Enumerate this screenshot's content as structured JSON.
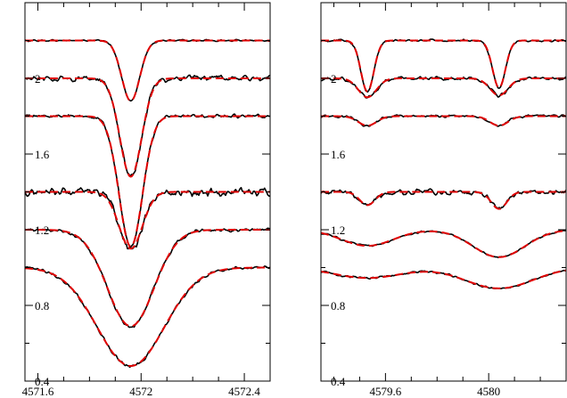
{
  "chart_data": [
    {
      "type": "line",
      "panel": "left",
      "xlim": [
        4571.55,
        4572.5
      ],
      "ylim": [
        0.4,
        2.4
      ],
      "xticks": [
        4571.6,
        4572.0,
        4572.4
      ],
      "xtick_labels": [
        "4571.6",
        "4572",
        "4572.4"
      ],
      "xminor": [
        4571.7,
        4571.8,
        4571.9,
        4572.1,
        4572.2,
        4572.3,
        4572.5
      ],
      "yticks": [
        0.4,
        0.8,
        1.2,
        1.6,
        2.0
      ],
      "ytick_labels": [
        "0.4",
        "0.8",
        "1.2",
        "1.6",
        "2"
      ],
      "yminor": [
        0.6,
        1.0,
        1.4,
        1.8,
        2.2
      ],
      "line_styles": {
        "observed": "#000000 solid",
        "model": "#e00000 dashed"
      },
      "spectra": [
        {
          "continuum": 2.2,
          "noise": 0.004,
          "lines": [
            {
              "center": 4571.96,
              "depth": 0.32,
              "width": 0.035
            }
          ]
        },
        {
          "continuum": 2.0,
          "noise": 0.012,
          "lines": [
            {
              "center": 4571.96,
              "depth": 0.52,
              "width": 0.042
            }
          ]
        },
        {
          "continuum": 1.8,
          "noise": 0.008,
          "lines": [
            {
              "center": 4571.96,
              "depth": 0.69,
              "width": 0.045
            }
          ]
        },
        {
          "continuum": 1.4,
          "noise": 0.018,
          "lines": [
            {
              "center": 4571.96,
              "depth": 0.3,
              "width": 0.045
            }
          ]
        },
        {
          "continuum": 1.2,
          "noise": 0.008,
          "lines": [
            {
              "center": 4571.96,
              "depth": 0.51,
              "width": 0.09
            }
          ]
        },
        {
          "continuum": 1.0,
          "noise": 0.008,
          "lines": [
            {
              "center": 4571.96,
              "depth": 0.52,
              "width": 0.13
            }
          ]
        }
      ]
    },
    {
      "type": "line",
      "panel": "right",
      "xlim": [
        4579.35,
        4580.3
      ],
      "ylim": [
        0.4,
        2.4
      ],
      "xticks": [
        4579.6,
        4580.0
      ],
      "xtick_labels": [
        "4579.6",
        "4580"
      ],
      "xminor": [
        4579.4,
        4579.5,
        4579.7,
        4579.8,
        4579.9,
        4580.1,
        4580.2,
        4580.3
      ],
      "yticks": [
        0.4,
        0.8,
        1.2,
        1.6,
        2.0
      ],
      "ytick_labels": [
        "0.4",
        "0.8",
        "1.2",
        "1.6",
        "2"
      ],
      "yminor": [
        0.6,
        1.0,
        1.4,
        1.8,
        2.2
      ],
      "line_styles": {
        "observed": "#000000 solid",
        "model": "#e00000 dashed"
      },
      "spectra": [
        {
          "continuum": 2.2,
          "noise": 0.005,
          "lines": [
            {
              "center": 4579.53,
              "depth": 0.27,
              "width": 0.025
            },
            {
              "center": 4580.04,
              "depth": 0.25,
              "width": 0.025
            }
          ]
        },
        {
          "continuum": 2.0,
          "noise": 0.008,
          "lines": [
            {
              "center": 4579.53,
              "depth": 0.1,
              "width": 0.035
            },
            {
              "center": 4580.04,
              "depth": 0.09,
              "width": 0.035
            }
          ]
        },
        {
          "continuum": 1.8,
          "noise": 0.006,
          "lines": [
            {
              "center": 4579.53,
              "depth": 0.05,
              "width": 0.035
            },
            {
              "center": 4580.04,
              "depth": 0.05,
              "width": 0.035
            }
          ]
        },
        {
          "continuum": 1.4,
          "noise": 0.012,
          "lines": [
            {
              "center": 4579.53,
              "depth": 0.07,
              "width": 0.03
            },
            {
              "center": 4580.04,
              "depth": 0.09,
              "width": 0.03
            }
          ]
        },
        {
          "continuum": 1.2,
          "noise": 0.004,
          "lines": [
            {
              "center": 4579.53,
              "depth": 0.085,
              "width": 0.1
            },
            {
              "center": 4580.04,
              "depth": 0.145,
              "width": 0.1
            }
          ]
        },
        {
          "continuum": 1.0,
          "noise": 0.005,
          "lines": [
            {
              "center": 4579.53,
              "depth": 0.055,
              "width": 0.13
            },
            {
              "center": 4580.04,
              "depth": 0.11,
              "width": 0.13
            }
          ]
        }
      ]
    }
  ]
}
